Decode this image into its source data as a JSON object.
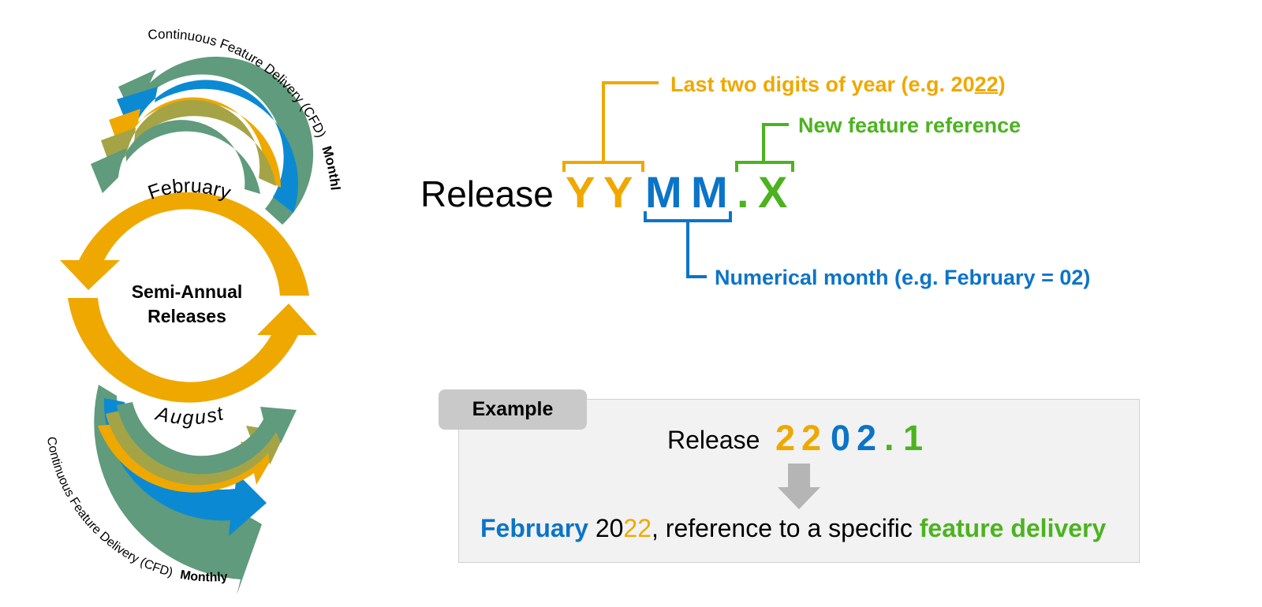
{
  "cycle": {
    "center_line1": "Semi-Annual",
    "center_line2": "Releases",
    "top_month": "February",
    "bottom_month": "August",
    "cfd_top_text": "Continuous Feature Delivery (CFD)",
    "cfd_top_bold": "Monthly",
    "cfd_bottom_text": "Continuous Feature Delivery (CFD)",
    "cfd_bottom_bold": "Monthly"
  },
  "format": {
    "release_word": "Release",
    "y1": "Y",
    "y2": "Y",
    "m1": "M",
    "m2": "M",
    "dot": ".",
    "x": "X",
    "callout_year_prefix": "Last two digits of year (e.g. 20",
    "callout_year_underlined": "22",
    "callout_year_suffix": ")",
    "callout_feature": "New feature reference",
    "callout_month": "Numerical month (e.g. February = 02)"
  },
  "example": {
    "tab_label": "Example",
    "release_word": "Release",
    "d1": "2",
    "d2": "2",
    "d3": "0",
    "d4": "2",
    "dot": ".",
    "d5": "1",
    "sentence_month": "February",
    "sentence_year_a": "20",
    "sentence_year_b": "22",
    "sentence_mid": ", reference to a specific ",
    "sentence_feature": "feature delivery"
  },
  "colors": {
    "year": "#efa800",
    "month": "#0b74c8",
    "feature": "#4cb320",
    "cfd_green": "#5f9b7c",
    "cfd_olive": "#a4a446"
  }
}
